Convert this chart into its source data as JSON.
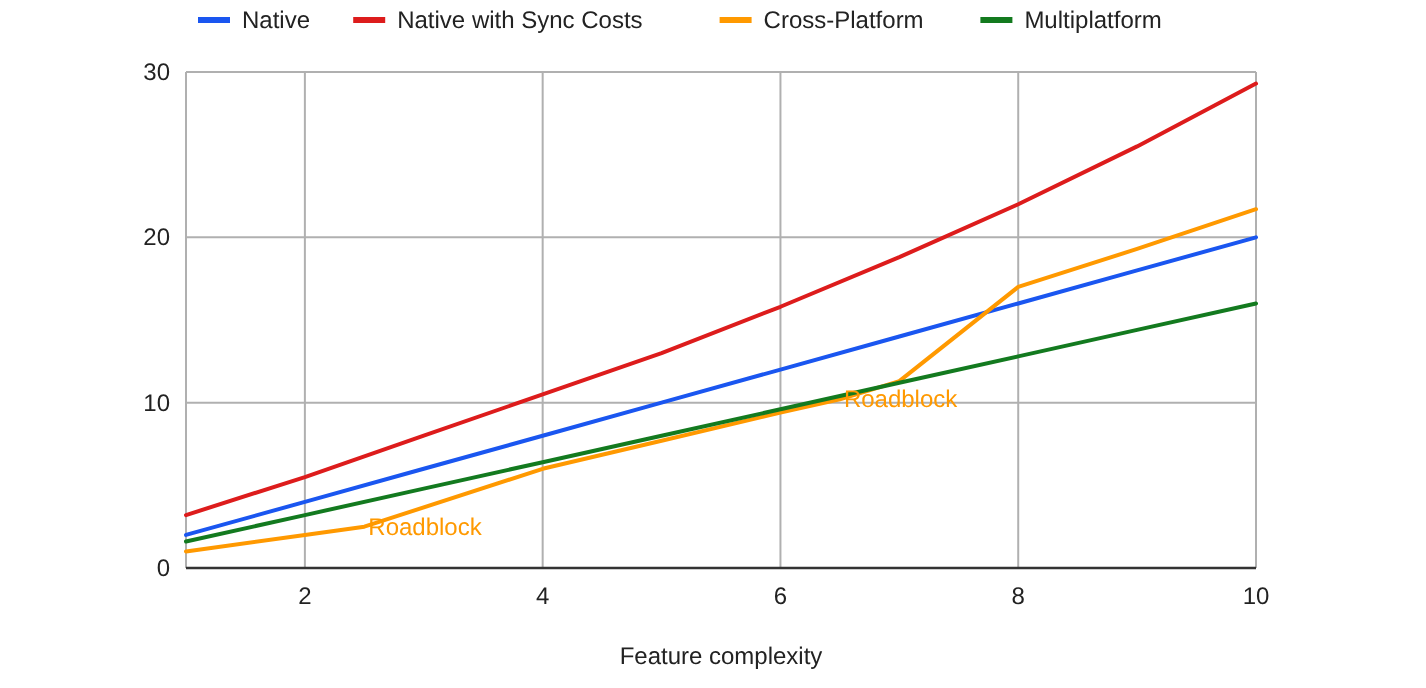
{
  "chart_data": {
    "type": "line",
    "xlabel": "Feature complexity",
    "xlim": [
      1,
      10
    ],
    "xticks": [
      2,
      4,
      6,
      8,
      10
    ],
    "ylim": [
      0,
      30
    ],
    "yticks": [
      0,
      10,
      20,
      30
    ],
    "grid": true,
    "legend": "top",
    "marker": "none",
    "line_style": "solid",
    "series": [
      {
        "name": "Native",
        "color": "#1a56f0",
        "x": [
          1,
          2,
          3,
          4,
          5,
          6,
          7,
          8,
          9,
          10
        ],
        "values": [
          2,
          4,
          6,
          8,
          10,
          12,
          14,
          16,
          18,
          20
        ]
      },
      {
        "name": "Native with Sync Costs",
        "color": "#dd1c1c",
        "x": [
          1,
          2,
          3,
          4,
          5,
          6,
          7,
          8,
          9,
          10
        ],
        "values": [
          3.2,
          5.5,
          8,
          10.5,
          13,
          15.8,
          18.8,
          22,
          25.5,
          29.3
        ]
      },
      {
        "name": "Cross-Platform",
        "color": "#ff9900",
        "x": [
          1,
          2,
          2.5,
          4,
          5,
          6,
          6.5,
          7,
          8,
          9,
          10
        ],
        "values": [
          1,
          2,
          2.5,
          6,
          7.7,
          9.4,
          10.2,
          11.3,
          17,
          19.3,
          21.7
        ]
      },
      {
        "name": "Multiplatform",
        "color": "#137a1f",
        "x": [
          1,
          2,
          3,
          4,
          5,
          6,
          7,
          8,
          9,
          10
        ],
        "values": [
          1.6,
          3.2,
          4.8,
          6.4,
          8,
          9.6,
          11.2,
          12.8,
          14.4,
          16
        ]
      }
    ],
    "annotations": [
      {
        "text": "Roadblock",
        "x": 2.5,
        "y": 2.5
      },
      {
        "text": "Roadblock",
        "x": 6.5,
        "y": 10.2
      }
    ]
  }
}
